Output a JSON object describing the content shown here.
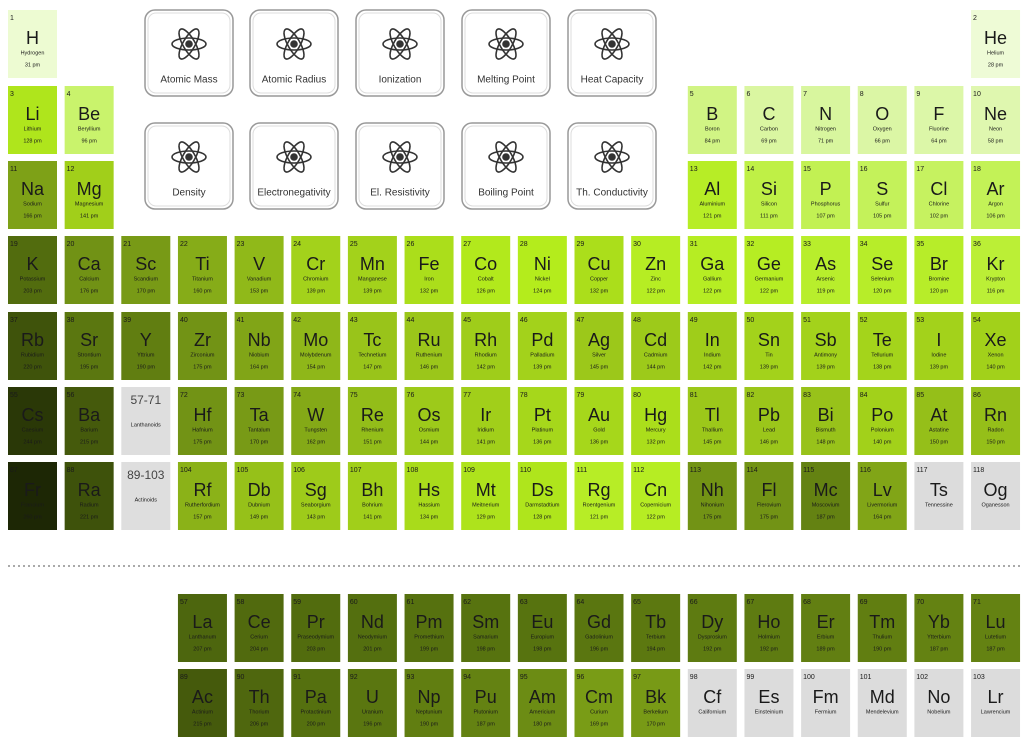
{
  "buttons": [
    {
      "label": "Atomic Mass"
    },
    {
      "label": "Atomic Radius"
    },
    {
      "label": "Ionization"
    },
    {
      "label": "Melting Point"
    },
    {
      "label": "Heat Capacity"
    },
    {
      "label": "Density"
    },
    {
      "label": "Electronegativity"
    },
    {
      "label": "El. Resistivity"
    },
    {
      "label": "Boiling Point"
    },
    {
      "label": "Th. Conductivity"
    }
  ],
  "placeholders": [
    {
      "range": "57-71",
      "name": "Lanthanoids"
    },
    {
      "range": "89-103",
      "name": "Actinoids"
    }
  ],
  "elements": [
    {
      "number": 1,
      "symbol": "H",
      "name": "Hydrogen",
      "radius": 31,
      "radius_label": "31 pm"
    },
    {
      "number": 2,
      "symbol": "He",
      "name": "Helium",
      "radius": 28,
      "radius_label": "28 pm"
    },
    {
      "number": 3,
      "symbol": "Li",
      "name": "Lithium",
      "radius": 128,
      "radius_label": "128 pm"
    },
    {
      "number": 4,
      "symbol": "Be",
      "name": "Beryllium",
      "radius": 96,
      "radius_label": "96 pm"
    },
    {
      "number": 5,
      "symbol": "B",
      "name": "Boron",
      "radius": 84,
      "radius_label": "84 pm"
    },
    {
      "number": 6,
      "symbol": "C",
      "name": "Carbon",
      "radius": 69,
      "radius_label": "69 pm"
    },
    {
      "number": 7,
      "symbol": "N",
      "name": "Nitrogen",
      "radius": 71,
      "radius_label": "71 pm"
    },
    {
      "number": 8,
      "symbol": "O",
      "name": "Oxygen",
      "radius": 66,
      "radius_label": "66 pm"
    },
    {
      "number": 9,
      "symbol": "F",
      "name": "Fluorine",
      "radius": 64,
      "radius_label": "64 pm"
    },
    {
      "number": 10,
      "symbol": "Ne",
      "name": "Neon",
      "radius": 58,
      "radius_label": "58 pm"
    },
    {
      "number": 11,
      "symbol": "Na",
      "name": "Sodium",
      "radius": 166,
      "radius_label": "166 pm"
    },
    {
      "number": 12,
      "symbol": "Mg",
      "name": "Magnesium",
      "radius": 141,
      "radius_label": "141 pm"
    },
    {
      "number": 13,
      "symbol": "Al",
      "name": "Aluminium",
      "radius": 121,
      "radius_label": "121 pm"
    },
    {
      "number": 14,
      "symbol": "Si",
      "name": "Silicon",
      "radius": 111,
      "radius_label": "111 pm"
    },
    {
      "number": 15,
      "symbol": "P",
      "name": "Phosphorus",
      "radius": 107,
      "radius_label": "107 pm"
    },
    {
      "number": 16,
      "symbol": "S",
      "name": "Sulfur",
      "radius": 105,
      "radius_label": "105 pm"
    },
    {
      "number": 17,
      "symbol": "Cl",
      "name": "Chlorine",
      "radius": 102,
      "radius_label": "102 pm"
    },
    {
      "number": 18,
      "symbol": "Ar",
      "name": "Argon",
      "radius": 106,
      "radius_label": "106 pm"
    },
    {
      "number": 19,
      "symbol": "K",
      "name": "Potassium",
      "radius": 203,
      "radius_label": "203 pm"
    },
    {
      "number": 20,
      "symbol": "Ca",
      "name": "Calcium",
      "radius": 176,
      "radius_label": "176 pm"
    },
    {
      "number": 21,
      "symbol": "Sc",
      "name": "Scandium",
      "radius": 170,
      "radius_label": "170 pm"
    },
    {
      "number": 22,
      "symbol": "Ti",
      "name": "Titanium",
      "radius": 160,
      "radius_label": "160 pm"
    },
    {
      "number": 23,
      "symbol": "V",
      "name": "Vanadium",
      "radius": 153,
      "radius_label": "153 pm"
    },
    {
      "number": 24,
      "symbol": "Cr",
      "name": "Chromium",
      "radius": 139,
      "radius_label": "139 pm"
    },
    {
      "number": 25,
      "symbol": "Mn",
      "name": "Manganese",
      "radius": 139,
      "radius_label": "139 pm"
    },
    {
      "number": 26,
      "symbol": "Fe",
      "name": "Iron",
      "radius": 132,
      "radius_label": "132 pm"
    },
    {
      "number": 27,
      "symbol": "Co",
      "name": "Cobalt",
      "radius": 126,
      "radius_label": "126 pm"
    },
    {
      "number": 28,
      "symbol": "Ni",
      "name": "Nickel",
      "radius": 124,
      "radius_label": "124 pm"
    },
    {
      "number": 29,
      "symbol": "Cu",
      "name": "Copper",
      "radius": 132,
      "radius_label": "132 pm"
    },
    {
      "number": 30,
      "symbol": "Zn",
      "name": "Zinc",
      "radius": 122,
      "radius_label": "122 pm"
    },
    {
      "number": 31,
      "symbol": "Ga",
      "name": "Gallium",
      "radius": 122,
      "radius_label": "122 pm"
    },
    {
      "number": 32,
      "symbol": "Ge",
      "name": "Germanium",
      "radius": 122,
      "radius_label": "122 pm"
    },
    {
      "number": 33,
      "symbol": "As",
      "name": "Arsenic",
      "radius": 119,
      "radius_label": "119 pm"
    },
    {
      "number": 34,
      "symbol": "Se",
      "name": "Selenium",
      "radius": 120,
      "radius_label": "120 pm"
    },
    {
      "number": 35,
      "symbol": "Br",
      "name": "Bromine",
      "radius": 120,
      "radius_label": "120 pm"
    },
    {
      "number": 36,
      "symbol": "Kr",
      "name": "Krypton",
      "radius": 116,
      "radius_label": "116 pm"
    },
    {
      "number": 37,
      "symbol": "Rb",
      "name": "Rubidium",
      "radius": 220,
      "radius_label": "220 pm"
    },
    {
      "number": 38,
      "symbol": "Sr",
      "name": "Strontium",
      "radius": 195,
      "radius_label": "195 pm"
    },
    {
      "number": 39,
      "symbol": "Y",
      "name": "Yttrium",
      "radius": 190,
      "radius_label": "190 pm"
    },
    {
      "number": 40,
      "symbol": "Zr",
      "name": "Zirconium",
      "radius": 175,
      "radius_label": "175 pm"
    },
    {
      "number": 41,
      "symbol": "Nb",
      "name": "Niobium",
      "radius": 164,
      "radius_label": "164 pm"
    },
    {
      "number": 42,
      "symbol": "Mo",
      "name": "Molybdenum",
      "radius": 154,
      "radius_label": "154 pm"
    },
    {
      "number": 43,
      "symbol": "Tc",
      "name": "Technetium",
      "radius": 147,
      "radius_label": "147 pm"
    },
    {
      "number": 44,
      "symbol": "Ru",
      "name": "Ruthenium",
      "radius": 146,
      "radius_label": "146 pm"
    },
    {
      "number": 45,
      "symbol": "Rh",
      "name": "Rhodium",
      "radius": 142,
      "radius_label": "142 pm"
    },
    {
      "number": 46,
      "symbol": "Pd",
      "name": "Palladium",
      "radius": 139,
      "radius_label": "139 pm"
    },
    {
      "number": 47,
      "symbol": "Ag",
      "name": "Silver",
      "radius": 145,
      "radius_label": "145 pm"
    },
    {
      "number": 48,
      "symbol": "Cd",
      "name": "Cadmium",
      "radius": 144,
      "radius_label": "144 pm"
    },
    {
      "number": 49,
      "symbol": "In",
      "name": "Indium",
      "radius": 142,
      "radius_label": "142 pm"
    },
    {
      "number": 50,
      "symbol": "Sn",
      "name": "Tin",
      "radius": 139,
      "radius_label": "139 pm"
    },
    {
      "number": 51,
      "symbol": "Sb",
      "name": "Antimony",
      "radius": 139,
      "radius_label": "139 pm"
    },
    {
      "number": 52,
      "symbol": "Te",
      "name": "Tellurium",
      "radius": 138,
      "radius_label": "138 pm"
    },
    {
      "number": 53,
      "symbol": "I",
      "name": "Iodine",
      "radius": 139,
      "radius_label": "139 pm"
    },
    {
      "number": 54,
      "symbol": "Xe",
      "name": "Xenon",
      "radius": 140,
      "radius_label": "140 pm"
    },
    {
      "number": 55,
      "symbol": "Cs",
      "name": "Caesium",
      "radius": 244,
      "radius_label": "244 pm"
    },
    {
      "number": 56,
      "symbol": "Ba",
      "name": "Barium",
      "radius": 215,
      "radius_label": "215 pm"
    },
    {
      "number": 57,
      "symbol": "La",
      "name": "Lanthanum",
      "radius": 207,
      "radius_label": "207 pm"
    },
    {
      "number": 58,
      "symbol": "Ce",
      "name": "Cerium",
      "radius": 204,
      "radius_label": "204 pm"
    },
    {
      "number": 59,
      "symbol": "Pr",
      "name": "Praseodymium",
      "radius": 203,
      "radius_label": "203 pm"
    },
    {
      "number": 60,
      "symbol": "Nd",
      "name": "Neodymium",
      "radius": 201,
      "radius_label": "201 pm"
    },
    {
      "number": 61,
      "symbol": "Pm",
      "name": "Promethium",
      "radius": 199,
      "radius_label": "199 pm"
    },
    {
      "number": 62,
      "symbol": "Sm",
      "name": "Samarium",
      "radius": 198,
      "radius_label": "198 pm"
    },
    {
      "number": 63,
      "symbol": "Eu",
      "name": "Europium",
      "radius": 198,
      "radius_label": "198 pm"
    },
    {
      "number": 64,
      "symbol": "Gd",
      "name": "Gadolinium",
      "radius": 196,
      "radius_label": "196 pm"
    },
    {
      "number": 65,
      "symbol": "Tb",
      "name": "Terbium",
      "radius": 194,
      "radius_label": "194 pm"
    },
    {
      "number": 66,
      "symbol": "Dy",
      "name": "Dysprosium",
      "radius": 192,
      "radius_label": "192 pm"
    },
    {
      "number": 67,
      "symbol": "Ho",
      "name": "Holmium",
      "radius": 192,
      "radius_label": "192 pm"
    },
    {
      "number": 68,
      "symbol": "Er",
      "name": "Erbium",
      "radius": 189,
      "radius_label": "189 pm"
    },
    {
      "number": 69,
      "symbol": "Tm",
      "name": "Thulium",
      "radius": 190,
      "radius_label": "190 pm"
    },
    {
      "number": 70,
      "symbol": "Yb",
      "name": "Ytterbium",
      "radius": 187,
      "radius_label": "187 pm"
    },
    {
      "number": 71,
      "symbol": "Lu",
      "name": "Lutetium",
      "radius": 187,
      "radius_label": "187 pm"
    },
    {
      "number": 72,
      "symbol": "Hf",
      "name": "Hafnium",
      "radius": 175,
      "radius_label": "175 pm"
    },
    {
      "number": 73,
      "symbol": "Ta",
      "name": "Tantalum",
      "radius": 170,
      "radius_label": "170 pm"
    },
    {
      "number": 74,
      "symbol": "W",
      "name": "Tungsten",
      "radius": 162,
      "radius_label": "162 pm"
    },
    {
      "number": 75,
      "symbol": "Re",
      "name": "Rhenium",
      "radius": 151,
      "radius_label": "151 pm"
    },
    {
      "number": 76,
      "symbol": "Os",
      "name": "Osmium",
      "radius": 144,
      "radius_label": "144 pm"
    },
    {
      "number": 77,
      "symbol": "Ir",
      "name": "Iridium",
      "radius": 141,
      "radius_label": "141 pm"
    },
    {
      "number": 78,
      "symbol": "Pt",
      "name": "Platinum",
      "radius": 136,
      "radius_label": "136 pm"
    },
    {
      "number": 79,
      "symbol": "Au",
      "name": "Gold",
      "radius": 136,
      "radius_label": "136 pm"
    },
    {
      "number": 80,
      "symbol": "Hg",
      "name": "Mercury",
      "radius": 132,
      "radius_label": "132 pm"
    },
    {
      "number": 81,
      "symbol": "Tl",
      "name": "Thallium",
      "radius": 145,
      "radius_label": "145 pm"
    },
    {
      "number": 82,
      "symbol": "Pb",
      "name": "Lead",
      "radius": 146,
      "radius_label": "146 pm"
    },
    {
      "number": 83,
      "symbol": "Bi",
      "name": "Bismuth",
      "radius": 148,
      "radius_label": "148 pm"
    },
    {
      "number": 84,
      "symbol": "Po",
      "name": "Polonium",
      "radius": 140,
      "radius_label": "140 pm"
    },
    {
      "number": 85,
      "symbol": "At",
      "name": "Astatine",
      "radius": 150,
      "radius_label": "150 pm"
    },
    {
      "number": 86,
      "symbol": "Rn",
      "name": "Radon",
      "radius": 150,
      "radius_label": "150 pm"
    },
    {
      "number": 87,
      "symbol": "Fr",
      "name": "Francium",
      "radius": 260,
      "radius_label": "260 pm"
    },
    {
      "number": 88,
      "symbol": "Ra",
      "name": "Radium",
      "radius": 221,
      "radius_label": "221 pm"
    },
    {
      "number": 89,
      "symbol": "Ac",
      "name": "Actinium",
      "radius": 215,
      "radius_label": "215 pm"
    },
    {
      "number": 90,
      "symbol": "Th",
      "name": "Thorium",
      "radius": 206,
      "radius_label": "206 pm"
    },
    {
      "number": 91,
      "symbol": "Pa",
      "name": "Protactinium",
      "radius": 200,
      "radius_label": "200 pm"
    },
    {
      "number": 92,
      "symbol": "U",
      "name": "Uranium",
      "radius": 196,
      "radius_label": "196 pm"
    },
    {
      "number": 93,
      "symbol": "Np",
      "name": "Neptunium",
      "radius": 190,
      "radius_label": "190 pm"
    },
    {
      "number": 94,
      "symbol": "Pu",
      "name": "Plutonium",
      "radius": 187,
      "radius_label": "187 pm"
    },
    {
      "number": 95,
      "symbol": "Am",
      "name": "Americium",
      "radius": 180,
      "radius_label": "180 pm"
    },
    {
      "number": 96,
      "symbol": "Cm",
      "name": "Curium",
      "radius": 169,
      "radius_label": "169 pm"
    },
    {
      "number": 97,
      "symbol": "Bk",
      "name": "Berkelium",
      "radius": 170,
      "radius_label": "170 pm"
    },
    {
      "number": 98,
      "symbol": "Cf",
      "name": "Californium"
    },
    {
      "number": 99,
      "symbol": "Es",
      "name": "Einsteinium"
    },
    {
      "number": 100,
      "symbol": "Fm",
      "name": "Fermium"
    },
    {
      "number": 101,
      "symbol": "Md",
      "name": "Mendelevium"
    },
    {
      "number": 102,
      "symbol": "No",
      "name": "Nobelium"
    },
    {
      "number": 103,
      "symbol": "Lr",
      "name": "Lawrencium"
    },
    {
      "number": 104,
      "symbol": "Rf",
      "name": "Rutherfordium",
      "radius": 157,
      "radius_label": "157 pm"
    },
    {
      "number": 105,
      "symbol": "Db",
      "name": "Dubnium",
      "radius": 149,
      "radius_label": "149 pm"
    },
    {
      "number": 106,
      "symbol": "Sg",
      "name": "Seaborgium",
      "radius": 143,
      "radius_label": "143 pm"
    },
    {
      "number": 107,
      "symbol": "Bh",
      "name": "Bohrium",
      "radius": 141,
      "radius_label": "141 pm"
    },
    {
      "number": 108,
      "symbol": "Hs",
      "name": "Hassium",
      "radius": 134,
      "radius_label": "134 pm"
    },
    {
      "number": 109,
      "symbol": "Mt",
      "name": "Meitnerium",
      "radius": 129,
      "radius_label": "129 pm"
    },
    {
      "number": 110,
      "symbol": "Ds",
      "name": "Darmstadtium",
      "radius": 128,
      "radius_label": "128 pm"
    },
    {
      "number": 111,
      "symbol": "Rg",
      "name": "Roentgenium",
      "radius": 121,
      "radius_label": "121 pm"
    },
    {
      "number": 112,
      "symbol": "Cn",
      "name": "Copernicium",
      "radius": 122,
      "radius_label": "122 pm"
    },
    {
      "number": 113,
      "symbol": "Nh",
      "name": "Nihonium",
      "radius": 175,
      "radius_label": "175 pm"
    },
    {
      "number": 114,
      "symbol": "Fl",
      "name": "Flerovium",
      "radius": 175,
      "radius_label": "175 pm"
    },
    {
      "number": 115,
      "symbol": "Mc",
      "name": "Moscovium",
      "radius": 187,
      "radius_label": "187 pm"
    },
    {
      "number": 116,
      "symbol": "Lv",
      "name": "Livermorium",
      "radius": 164,
      "radius_label": "164 pm"
    },
    {
      "number": 117,
      "symbol": "Ts",
      "name": "Tennessine"
    },
    {
      "number": 118,
      "symbol": "Og",
      "name": "Oganesson"
    }
  ]
}
